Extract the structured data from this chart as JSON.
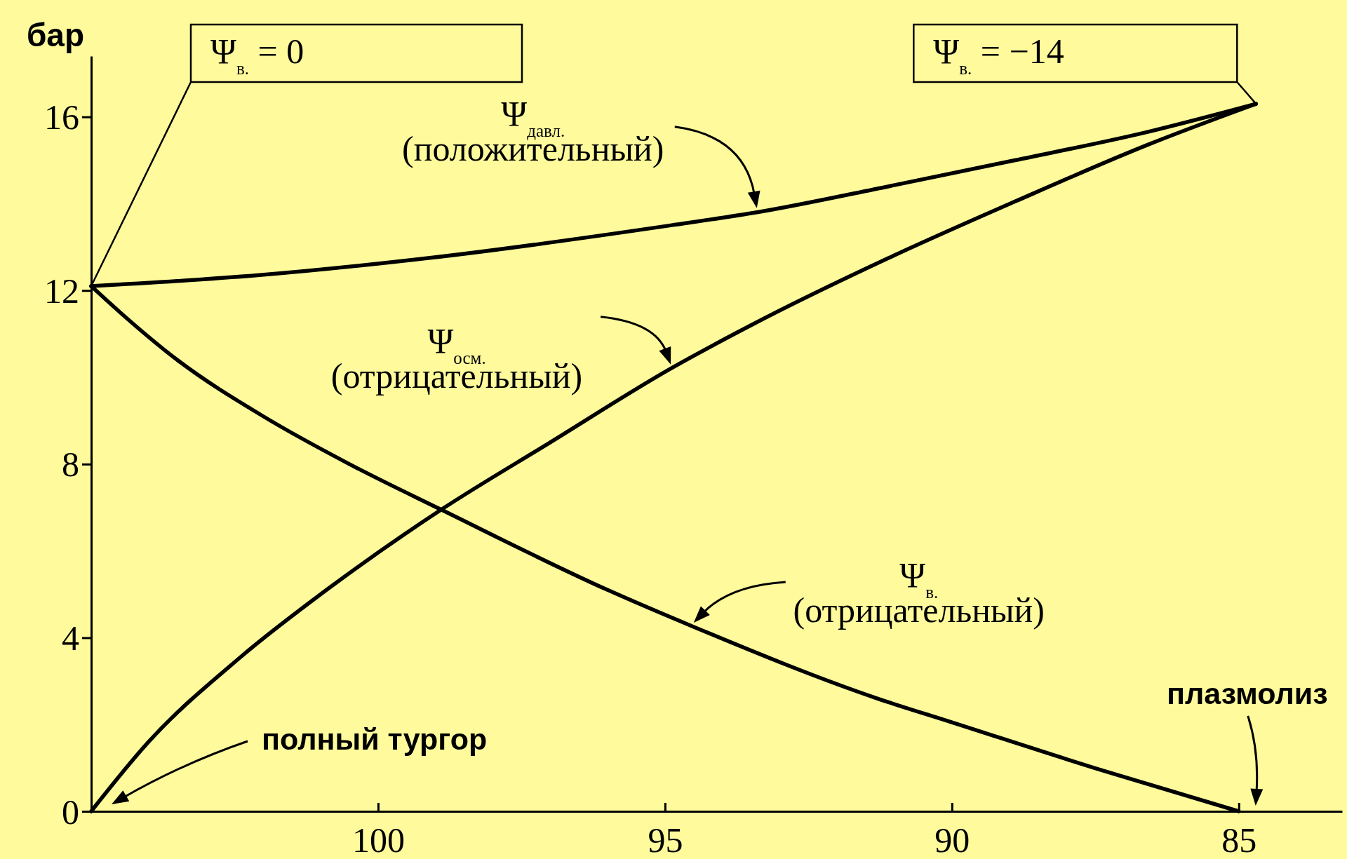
{
  "chart_data": {
    "type": "line",
    "ylabel": "бар",
    "xlim": [
      105,
      83.2
    ],
    "xticks": [
      100,
      95,
      90,
      85
    ],
    "ylim": [
      0,
      17.4
    ],
    "yticks": [
      0,
      4,
      8,
      12,
      16
    ],
    "series": [
      {
        "name": "Ψ$_{давл.}$\n(положительный)",
        "color": "#000000",
        "x": [
          105,
          102.1,
          99.1,
          94.9,
          93.4,
          91.1,
          88.9,
          86.6,
          84.7
        ],
        "values": [
          12.1,
          12.35,
          12.75,
          13.5,
          13.8,
          14.4,
          15.0,
          15.65,
          16.3
        ]
      },
      {
        "name": "Ψ$_{осм.}$\n(отрицательный)",
        "color": "#000000",
        "x": [
          105,
          104,
          102.4,
          100.9,
          98.9,
          97,
          94.9,
          93.5,
          91.1,
          88.9,
          86.6,
          84.7
        ],
        "values": [
          0,
          1.6,
          3.55,
          5.1,
          6.95,
          8.5,
          10.2,
          11.2,
          12.75,
          14.05,
          15.35,
          16.3
        ]
      },
      {
        "name": "Ψ$_{в.}$\n(отрицательный)",
        "color": "#000000",
        "x": [
          105,
          104.5,
          103.5,
          102,
          100.5,
          98.9,
          96,
          94.5,
          91.3,
          90,
          87.4,
          85
        ],
        "values": [
          12.1,
          11.5,
          10.4,
          9.1,
          8.0,
          6.95,
          5.1,
          4.25,
          2.6,
          2.05,
          0.95,
          0
        ]
      }
    ],
    "annotations": [
      {
        "text": "Ψ$_{в.}$ = 0",
        "x": 105,
        "y": 12.1
      },
      "Ψ$_{в.}$ = −14",
      "полный тургор",
      "плазмолиз"
    ]
  }
}
